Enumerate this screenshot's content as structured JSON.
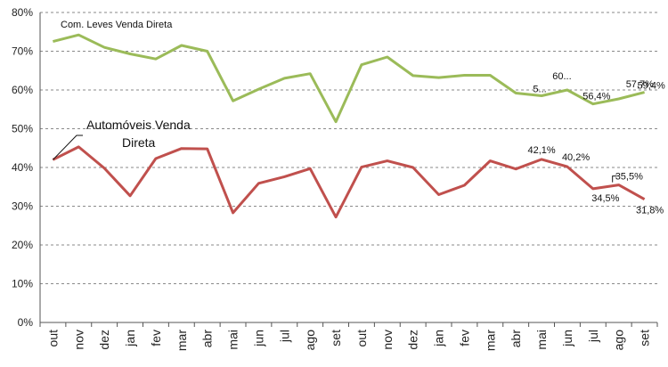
{
  "chart_data": {
    "type": "line",
    "title": "",
    "xlabel": "",
    "ylabel": "",
    "ylim": [
      0,
      80
    ],
    "y_ticks": [
      0,
      10,
      20,
      30,
      40,
      50,
      60,
      70,
      80
    ],
    "y_tick_labels": [
      "0%",
      "10%",
      "20%",
      "30%",
      "40%",
      "50%",
      "60%",
      "70%",
      "80%"
    ],
    "grid": "horizontal dashed",
    "categories": [
      "out",
      "nov",
      "dez",
      "jan",
      "fev",
      "mar",
      "abr",
      "mai",
      "jun",
      "jul",
      "ago",
      "set",
      "out",
      "nov",
      "dez",
      "jan",
      "fev",
      "mar",
      "abr",
      "mai",
      "jun",
      "jul",
      "ago",
      "set"
    ],
    "series": [
      {
        "name": "Com. Leves Venda Direta",
        "color": "#9BBB59",
        "values": [
          72.5,
          74.2,
          71.0,
          69.3,
          68.0,
          71.5,
          70.0,
          57.2,
          60.2,
          63.0,
          64.2,
          51.8,
          66.5,
          68.5,
          63.7,
          63.2,
          63.8,
          63.8,
          59.2,
          58.5,
          60.0,
          56.4,
          57.7,
          59.4
        ]
      },
      {
        "name": "Automóveis Venda Direta",
        "color": "#C0504D",
        "values": [
          42.0,
          45.3,
          39.8,
          32.7,
          42.3,
          44.9,
          44.8,
          28.3,
          35.9,
          37.6,
          39.7,
          27.2,
          40.1,
          41.7,
          40.0,
          33.0,
          35.4,
          41.7,
          39.6,
          42.1,
          40.2,
          34.5,
          35.5,
          31.8
        ]
      }
    ],
    "series_labels": [
      {
        "text": "Com. Leves Venda Direta",
        "index": 0
      },
      {
        "line1": "Automóveis Venda",
        "line2": "Direta",
        "index": 0
      }
    ],
    "data_labels": [
      {
        "series": 0,
        "index": 19,
        "text": "5..."
      },
      {
        "series": 0,
        "index": 20,
        "text": "60..."
      },
      {
        "series": 0,
        "index": 21,
        "text": "56,4%"
      },
      {
        "series": 0,
        "index": 22,
        "text": "57,7%"
      },
      {
        "series": 0,
        "index": 23,
        "text": "59,4%"
      },
      {
        "series": 1,
        "index": 19,
        "text": "42,1%"
      },
      {
        "series": 1,
        "index": 20,
        "text": "40,2%"
      },
      {
        "series": 1,
        "index": 21,
        "text": "34,5%"
      },
      {
        "series": 1,
        "index": 22,
        "text": "35,5%"
      },
      {
        "series": 1,
        "index": 23,
        "text": "31,8%"
      }
    ]
  }
}
